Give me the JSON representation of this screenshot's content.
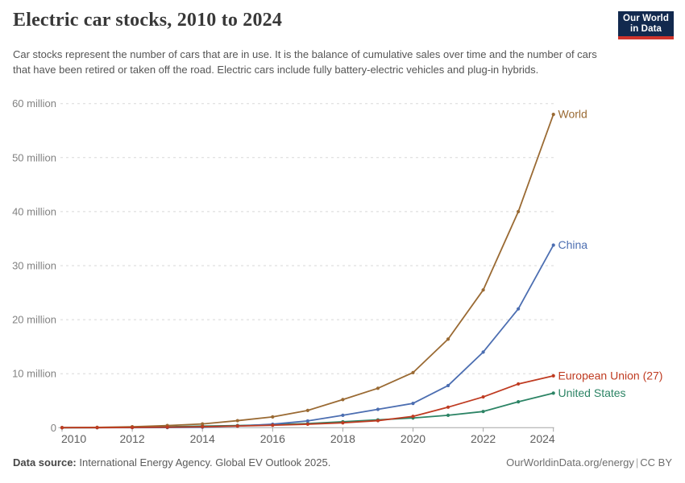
{
  "header": {
    "title": "Electric car stocks, 2010 to 2024",
    "subtitle": "Car stocks represent the number of cars that are in use. It is the balance of cumulative sales over time and the number of cars that have been retired or taken off the road. Electric cars include fully battery-electric vehicles and plug-in hybrids.",
    "logo": {
      "line1": "Our World",
      "line2": "in Data",
      "bg_color": "#12294E",
      "bar_color": "#D0342C"
    }
  },
  "footer": {
    "source_label": "Data source:",
    "source_text": "International Energy Agency. Global EV Outlook 2025.",
    "link": "OurWorldinData.org/energy",
    "separator": "|",
    "license": "CC BY"
  },
  "chart_data": {
    "type": "line",
    "title": "Electric car stocks, 2010 to 2024",
    "xlabel": "",
    "ylabel": "",
    "unit": "million cars",
    "xlim": [
      2010,
      2024
    ],
    "ylim": [
      0,
      60
    ],
    "grid": "horizontal dashed",
    "legend": "line-end labels",
    "x": [
      2010,
      2011,
      2012,
      2013,
      2014,
      2015,
      2016,
      2017,
      2018,
      2019,
      2020,
      2021,
      2022,
      2023,
      2024
    ],
    "xticks": [
      2010,
      2012,
      2014,
      2016,
      2018,
      2020,
      2022,
      2024
    ],
    "yticks": [
      {
        "value": 0,
        "label": "0"
      },
      {
        "value": 10,
        "label": "10 million"
      },
      {
        "value": 20,
        "label": "20 million"
      },
      {
        "value": 30,
        "label": "30 million"
      },
      {
        "value": 40,
        "label": "40 million"
      },
      {
        "value": 50,
        "label": "50 million"
      },
      {
        "value": 60,
        "label": "60 million"
      }
    ],
    "series": [
      {
        "name": "World",
        "color": "#9A6A33",
        "values": [
          0.02,
          0.06,
          0.18,
          0.4,
          0.7,
          1.3,
          2.0,
          3.2,
          5.2,
          7.3,
          10.2,
          16.4,
          25.5,
          40.0,
          58.0
        ]
      },
      {
        "name": "China",
        "color": "#4C6EB1",
        "values": [
          0.002,
          0.007,
          0.02,
          0.03,
          0.09,
          0.3,
          0.65,
          1.25,
          2.3,
          3.4,
          4.5,
          7.8,
          14.0,
          22.0,
          33.8
        ]
      },
      {
        "name": "European Union (27)",
        "color": "#BF3B21",
        "values": [
          0.005,
          0.015,
          0.04,
          0.1,
          0.18,
          0.3,
          0.45,
          0.65,
          0.9,
          1.3,
          2.1,
          3.8,
          5.7,
          8.1,
          9.6
        ]
      },
      {
        "name": "United States",
        "color": "#2C8465",
        "values": [
          0.001,
          0.02,
          0.07,
          0.17,
          0.3,
          0.4,
          0.56,
          0.76,
          1.1,
          1.45,
          1.8,
          2.3,
          3.0,
          4.8,
          6.4
        ]
      }
    ],
    "draw_order": [
      3,
      1,
      0,
      2
    ]
  }
}
